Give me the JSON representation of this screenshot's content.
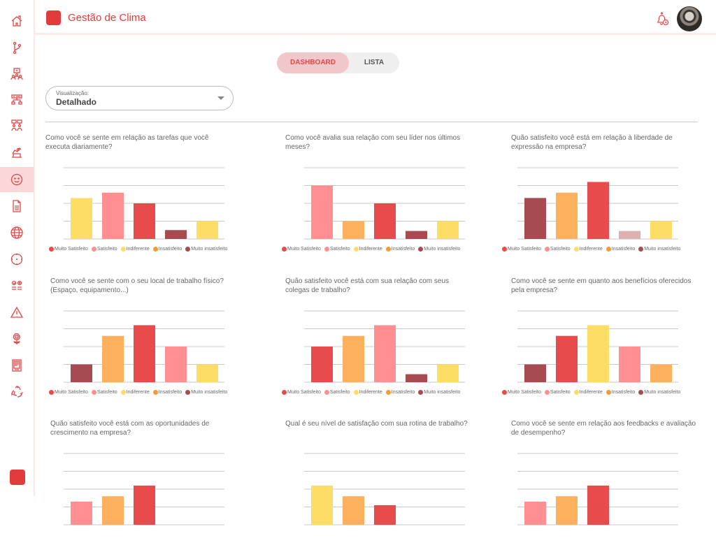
{
  "app": {
    "title": "Gestão de Clima"
  },
  "header": {
    "bell_icon": "bell-clock-icon",
    "avatar": "user-avatar"
  },
  "sidebar": {
    "items": [
      {
        "icon": "home-icon",
        "active": false
      },
      {
        "icon": "git-branch-icon",
        "active": false
      },
      {
        "icon": "org-presentation-icon",
        "active": false
      },
      {
        "icon": "hierarchy-icon",
        "active": false
      },
      {
        "icon": "team-chat-icon",
        "active": false
      },
      {
        "icon": "podium-icon",
        "active": false
      },
      {
        "icon": "smiley-icon",
        "active": true
      },
      {
        "icon": "document-icon",
        "active": false
      },
      {
        "icon": "globe-icon",
        "active": false
      },
      {
        "icon": "target-icon",
        "active": false
      },
      {
        "icon": "checklist-icon",
        "active": false
      },
      {
        "icon": "warning-icon",
        "active": false
      },
      {
        "icon": "flower-icon",
        "active": false
      },
      {
        "icon": "report-icon",
        "active": false
      },
      {
        "icon": "recycle-icon",
        "active": false
      }
    ]
  },
  "tabs": {
    "dashboard": "DASHBOARD",
    "lista": "LISTA",
    "active": "DASHBOARD"
  },
  "view_select": {
    "label": "Visualização:",
    "value": "Detalhado"
  },
  "legend": [
    {
      "label": "Muito Satisfeito",
      "color": "#e84b4b"
    },
    {
      "label": "Satisfeito",
      "color": "#ff8f91"
    },
    {
      "label": "Indiferente",
      "color": "#fedd66"
    },
    {
      "label": "Insatisfeito",
      "color": "#f99a32"
    },
    {
      "label": "Muito insatisfeito",
      "color": "#a84a52"
    }
  ],
  "chart_data": [
    {
      "type": "bar",
      "title": "Como você se sente em relação as tarefas que você executa diariamente?",
      "ylim": [
        0,
        4
      ],
      "values": [
        2.3,
        2.6,
        2.0,
        0.5,
        1.0
      ],
      "colors": [
        "#fedd66",
        "#ff8f91",
        "#e84b4b",
        "#a84a52",
        "#fedd66"
      ]
    },
    {
      "type": "bar",
      "title": "Como você avalia sua relação com seu líder nos últimos meses?",
      "ylim": [
        0,
        4
      ],
      "values": [
        3.0,
        1.0,
        2.0,
        0.45,
        1.0
      ],
      "colors": [
        "#ff8f91",
        "#fdb05e",
        "#e84b4b",
        "#a84a52",
        "#fedd66"
      ]
    },
    {
      "type": "bar",
      "title": "Quão satisfeito você está em relação à liberdade de expressão na empresa?",
      "ylim": [
        0,
        4
      ],
      "values": [
        2.3,
        2.6,
        3.2,
        0.45,
        1.0
      ],
      "colors": [
        "#a84a52",
        "#fdb05e",
        "#e84b4b",
        "#dfb0b2",
        "#fedd66"
      ]
    },
    {
      "type": "bar",
      "title": "Como você se sente com o seu local de trabalho físico? (Espaço, equipamento...)",
      "ylim": [
        0,
        4
      ],
      "values": [
        1.0,
        2.6,
        3.2,
        2.0,
        1.0
      ],
      "colors": [
        "#a84a52",
        "#fdb05e",
        "#e84b4b",
        "#ff8f91",
        "#fedd66"
      ]
    },
    {
      "type": "bar",
      "title": "Quão satisfeito você está com sua relação com seus colegas de trabalho?",
      "ylim": [
        0,
        4
      ],
      "values": [
        2.0,
        2.6,
        3.2,
        0.45,
        1.0
      ],
      "colors": [
        "#e84b4b",
        "#fdb05e",
        "#ff8f91",
        "#a84a52",
        "#fedd66"
      ]
    },
    {
      "type": "bar",
      "title": "Como você se sente em quanto aos benefícios oferecidos pela empresa?",
      "ylim": [
        0,
        4
      ],
      "values": [
        1.0,
        2.6,
        3.2,
        2.0,
        1.0
      ],
      "colors": [
        "#a84a52",
        "#e84b4b",
        "#fedd66",
        "#ff8f91",
        "#fdb05e"
      ]
    },
    {
      "type": "bar",
      "title": "Quão satisfeito você está com as oportunidades de crescimento na empresa?",
      "ylim": [
        0,
        4
      ],
      "values": [
        1.3,
        1.6,
        2.2
      ],
      "colors": [
        "#ff8f91",
        "#fdb05e",
        "#e84b4b"
      ]
    },
    {
      "type": "bar",
      "title": "Qual é seu nível de satisfação com sua rotina de trabalho?",
      "ylim": [
        0,
        4
      ],
      "values": [
        2.2,
        1.6,
        1.1
      ],
      "colors": [
        "#fedd66",
        "#fdb05e",
        "#e84b4b"
      ]
    },
    {
      "type": "bar",
      "title": "Como você se sente em relação aos feedbacks e avaliação de desempenho?",
      "ylim": [
        0,
        4
      ],
      "values": [
        1.3,
        1.6,
        2.2
      ],
      "colors": [
        "#ff8f91",
        "#fdb05e",
        "#e84b4b"
      ]
    }
  ]
}
